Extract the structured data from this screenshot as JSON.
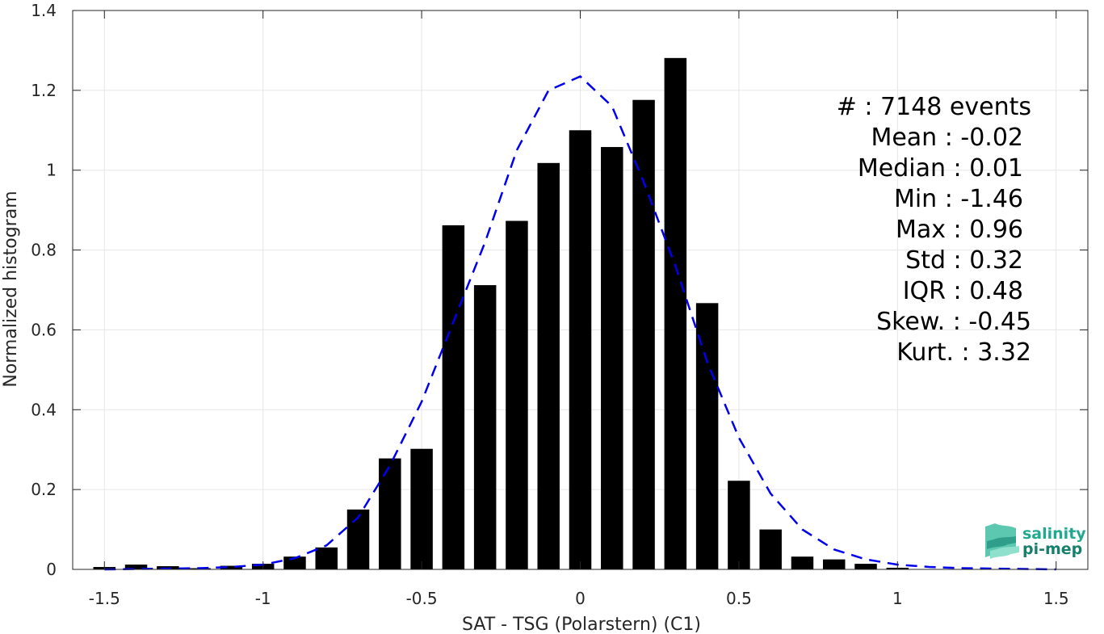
{
  "chart_data": {
    "type": "bar",
    "xlabel": "SAT - TSG (Polarstern) (C1)",
    "ylabel": "Normalized histogram",
    "xlim": [
      -1.6,
      1.6
    ],
    "ylim": [
      0,
      1.4
    ],
    "xticks": [
      "-1.5",
      "-1",
      "-0.5",
      "0",
      "0.5",
      "1",
      "1.5"
    ],
    "xtick_values": [
      -1.5,
      -1,
      -0.5,
      0,
      0.5,
      1,
      1.5
    ],
    "yticks": [
      "0",
      "0.2",
      "0.4",
      "0.6",
      "0.8",
      "1",
      "1.2",
      "1.4"
    ],
    "ytick_values": [
      0,
      0.2,
      0.4,
      0.6,
      0.8,
      1,
      1.2,
      1.4
    ],
    "grid": true,
    "bar_width": 0.07,
    "bar_color": "#000000",
    "bars": {
      "x": [
        -1.5,
        -1.4,
        -1.3,
        -1.2,
        -1.1,
        -1.0,
        -0.9,
        -0.8,
        -0.7,
        -0.6,
        -0.5,
        -0.4,
        -0.3,
        -0.2,
        -0.1,
        0.0,
        0.1,
        0.2,
        0.3,
        0.4,
        0.5,
        0.6,
        0.7,
        0.8,
        0.9,
        1.0
      ],
      "values": [
        0.006,
        0.012,
        0.008,
        0.003,
        0.009,
        0.014,
        0.032,
        0.055,
        0.15,
        0.278,
        0.302,
        0.862,
        0.712,
        0.873,
        1.018,
        1.1,
        1.058,
        1.176,
        1.281,
        0.667,
        0.222,
        0.1,
        0.032,
        0.025,
        0.014,
        0.004
      ]
    },
    "fit_curve": {
      "color": "#0000ee",
      "x": [
        -1.5,
        -1.4,
        -1.3,
        -1.2,
        -1.1,
        -1.0,
        -0.9,
        -0.8,
        -0.7,
        -0.6,
        -0.5,
        -0.4,
        -0.3,
        -0.2,
        -0.1,
        0.0,
        0.1,
        0.2,
        0.3,
        0.4,
        0.5,
        0.6,
        0.7,
        0.8,
        0.9,
        1.0,
        1.1,
        1.2,
        1.3,
        1.4,
        1.5
      ],
      "values": [
        0.0,
        0.001,
        0.002,
        0.003,
        0.006,
        0.012,
        0.028,
        0.06,
        0.13,
        0.26,
        0.42,
        0.62,
        0.82,
        1.05,
        1.2,
        1.235,
        1.16,
        0.97,
        0.76,
        0.52,
        0.33,
        0.19,
        0.1,
        0.05,
        0.025,
        0.012,
        0.006,
        0.003,
        0.002,
        0.001,
        0.0
      ]
    },
    "annotations": [
      "#  : 7148 events",
      "Mean : -0.02",
      "Median : 0.01",
      "Min : -1.46",
      "Max : 0.96",
      "Std : 0.32",
      "IQR : 0.48",
      "Skew. : -0.45",
      "Kurt. : 3.32"
    ]
  },
  "logo": {
    "line1": "salinity",
    "line2": "pi-mep",
    "color": "#1fa98f"
  }
}
